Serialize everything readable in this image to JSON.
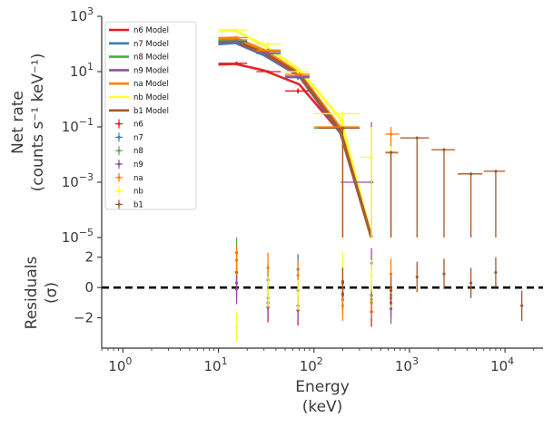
{
  "chart_data": [
    {
      "type": "line",
      "panel": "spectrum",
      "x_scale": "log",
      "y_scale": "log",
      "xlim": [
        0.6,
        25000
      ],
      "ylim": [
        1e-05,
        1000
      ],
      "ylabel": [
        "Net rate",
        "(counts s⁻¹ keV⁻¹)"
      ],
      "y_ticks": [
        {
          "value": 1e-05,
          "exp": "−5"
        },
        {
          "value": 0.001,
          "exp": "−3"
        },
        {
          "value": 0.1,
          "exp": "−1"
        },
        {
          "value": 10,
          "exp": "1"
        },
        {
          "value": 1000,
          "exp": "3"
        }
      ],
      "legend_position": "upper-left",
      "models": [
        {
          "name": "n6 Model",
          "color": "#e41a1c",
          "x": [
            10,
            15,
            30,
            70,
            190,
            400
          ],
          "y": [
            18,
            19,
            11,
            3.5,
            0.06,
            1e-05
          ]
        },
        {
          "name": "n7 Model",
          "color": "#377eb8",
          "x": [
            10,
            15,
            30,
            70,
            190,
            400
          ],
          "y": [
            100,
            110,
            40,
            7,
            0.06,
            1e-05
          ]
        },
        {
          "name": "n8 Model",
          "color": "#4daf4a",
          "x": [
            10,
            15,
            30,
            70,
            190,
            400
          ],
          "y": [
            130,
            140,
            50,
            8,
            0.07,
            1e-05
          ]
        },
        {
          "name": "n9 Model",
          "color": "#984ea3",
          "x": [
            10,
            15,
            30,
            70,
            190,
            400
          ],
          "y": [
            110,
            120,
            45,
            7.5,
            0.065,
            1e-05
          ]
        },
        {
          "name": "na Model",
          "color": "#ff7f00",
          "x": [
            10,
            15,
            30,
            70,
            190,
            400
          ],
          "y": [
            160,
            165,
            60,
            9,
            0.09,
            1e-05
          ]
        },
        {
          "name": "nb Model",
          "color": "#ffff33",
          "x": [
            10,
            15,
            30,
            70,
            190,
            400
          ],
          "y": [
            300,
            310,
            90,
            12,
            0.2,
            1e-05
          ]
        },
        {
          "name": "b1 Model",
          "color": "#a65628",
          "x": [
            10,
            15,
            30,
            70,
            190,
            400
          ],
          "y": [
            115,
            125,
            48,
            8,
            0.07,
            1e-05
          ]
        }
      ],
      "data_series": [
        {
          "name": "n6",
          "color": "#e41a1c",
          "points": [
            {
              "x": 15.5,
              "xlo": 10,
              "xhi": 20,
              "y": 20,
              "ylo": 17,
              "yhi": 23
            },
            {
              "x": 33,
              "xlo": 25,
              "xhi": 45,
              "y": 10,
              "ylo": 9,
              "yhi": 11
            },
            {
              "x": 68,
              "xlo": 50,
              "xhi": 90,
              "y": 2.0,
              "ylo": 1.6,
              "yhi": 2.5
            }
          ]
        },
        {
          "name": "n7",
          "color": "#377eb8",
          "points": [
            {
              "x": 15.5,
              "xlo": 10,
              "xhi": 20,
              "y": 120,
              "ylo": 100,
              "yhi": 140
            },
            {
              "x": 33,
              "xlo": 25,
              "xhi": 45,
              "y": 45,
              "ylo": 40,
              "yhi": 50
            },
            {
              "x": 68,
              "xlo": 50,
              "xhi": 90,
              "y": 6,
              "ylo": 5,
              "yhi": 7
            },
            {
              "x": 640,
              "xlo": 560,
              "xhi": 760,
              "y": 0.011,
              "ylo": 1e-05,
              "yhi": 0.012
            }
          ]
        },
        {
          "name": "n8",
          "color": "#4daf4a",
          "points": [
            {
              "x": 15.5,
              "xlo": 10,
              "xhi": 20,
              "y": 140,
              "ylo": 120,
              "yhi": 160
            },
            {
              "x": 33,
              "xlo": 25,
              "xhi": 45,
              "y": 55,
              "ylo": 48,
              "yhi": 62
            },
            {
              "x": 68,
              "xlo": 50,
              "xhi": 90,
              "y": 7,
              "ylo": 6,
              "yhi": 8
            },
            {
              "x": 200,
              "xlo": 100,
              "xhi": 300,
              "y": 0.09,
              "ylo": 1e-05,
              "yhi": 0.1
            }
          ]
        },
        {
          "name": "n9",
          "color": "#984ea3",
          "points": [
            {
              "x": 15.5,
              "xlo": 10,
              "xhi": 20,
              "y": 125,
              "ylo": 110,
              "yhi": 140
            },
            {
              "x": 33,
              "xlo": 25,
              "xhi": 45,
              "y": 48,
              "ylo": 42,
              "yhi": 54
            },
            {
              "x": 68,
              "xlo": 50,
              "xhi": 90,
              "y": 6.5,
              "ylo": 5.5,
              "yhi": 7.5
            },
            {
              "x": 400,
              "xlo": 190,
              "xhi": 420,
              "y": 0.001,
              "ylo": 1e-05,
              "yhi": 0.15
            }
          ]
        },
        {
          "name": "na",
          "color": "#ff7f00",
          "points": [
            {
              "x": 15.5,
              "xlo": 10,
              "xhi": 20,
              "y": 170,
              "ylo": 150,
              "yhi": 190
            },
            {
              "x": 33,
              "xlo": 25,
              "xhi": 45,
              "y": 60,
              "ylo": 52,
              "yhi": 68
            },
            {
              "x": 68,
              "xlo": 50,
              "xhi": 90,
              "y": 8,
              "ylo": 7,
              "yhi": 9
            },
            {
              "x": 200,
              "xlo": 100,
              "xhi": 300,
              "y": 0.1,
              "ylo": 1e-05,
              "yhi": 0.12
            },
            {
              "x": 640,
              "xlo": 560,
              "xhi": 780,
              "y": 0.055,
              "ylo": 1e-05,
              "yhi": 0.1
            }
          ]
        },
        {
          "name": "nb",
          "color": "#ffff33",
          "points": [
            {
              "x": 15.5,
              "xlo": 10,
              "xhi": 20,
              "y": 320,
              "ylo": 280,
              "yhi": 360
            },
            {
              "x": 33,
              "xlo": 25,
              "xhi": 45,
              "y": 100,
              "ylo": 85,
              "yhi": 115
            },
            {
              "x": 68,
              "xlo": 50,
              "xhi": 90,
              "y": 10,
              "ylo": 8.5,
              "yhi": 11.5
            },
            {
              "x": 200,
              "xlo": 100,
              "xhi": 300,
              "y": 0.3,
              "ylo": 1e-05,
              "yhi": 0.35
            },
            {
              "x": 400,
              "xlo": 300,
              "xhi": 420,
              "y": 0.008,
              "ylo": 1e-05,
              "yhi": 0.1
            },
            {
              "x": 640,
              "xlo": 560,
              "xhi": 760,
              "y": 0.011,
              "ylo": 1e-05,
              "yhi": 0.02
            }
          ]
        },
        {
          "name": "b1",
          "color": "#a65628",
          "points": [
            {
              "x": 200,
              "xlo": 110,
              "xhi": 300,
              "y": 0.09,
              "ylo": 1e-05,
              "yhi": 0.1
            },
            {
              "x": 640,
              "xlo": 560,
              "xhi": 760,
              "y": 0.012,
              "ylo": 1e-05,
              "yhi": 0.013
            },
            {
              "x": 1200,
              "xlo": 800,
              "xhi": 1600,
              "y": 0.04,
              "ylo": 1e-05,
              "yhi": 0.042
            },
            {
              "x": 2300,
              "xlo": 1700,
              "xhi": 3000,
              "y": 0.015,
              "ylo": 1e-05,
              "yhi": 0.016
            },
            {
              "x": 4400,
              "xlo": 3200,
              "xhi": 5800,
              "y": 0.002,
              "ylo": 1e-05,
              "yhi": 0.0022
            },
            {
              "x": 8000,
              "xlo": 6000,
              "xhi": 10000,
              "y": 0.0025,
              "ylo": 1e-05,
              "yhi": 0.0027
            }
          ]
        }
      ]
    },
    {
      "type": "scatter",
      "panel": "residuals",
      "x_scale": "log",
      "xlim": [
        0.6,
        25000
      ],
      "ylim": [
        -4,
        3.3
      ],
      "xlabel": [
        "Energy",
        "(keV)"
      ],
      "ylabel": [
        "Residuals",
        "(σ)"
      ],
      "x_ticks": [
        {
          "value": 1,
          "exp": "0"
        },
        {
          "value": 10,
          "exp": "1"
        },
        {
          "value": 100,
          "exp": "2"
        },
        {
          "value": 1000,
          "exp": "3"
        },
        {
          "value": 10000,
          "exp": "4"
        }
      ],
      "y_ticks": [
        {
          "value": -2,
          "label": "−2"
        },
        {
          "value": 0,
          "label": "0"
        },
        {
          "value": 2,
          "label": "2"
        }
      ],
      "reference_line": 0,
      "series": [
        {
          "name": "n6",
          "color": "#e41a1c",
          "points": [
            {
              "x": 15.5,
              "y": 1.0,
              "err": 1.0
            },
            {
              "x": 33,
              "y": -1.3,
              "err": 1.0
            },
            {
              "x": 68,
              "y": -1.5,
              "err": 1.0
            },
            {
              "x": 200,
              "y": 0.4,
              "err": 1.0
            },
            {
              "x": 400,
              "y": -1.6,
              "err": 1.0
            },
            {
              "x": 640,
              "y": -1.0,
              "err": 1.0
            }
          ]
        },
        {
          "name": "n7",
          "color": "#377eb8",
          "points": [
            {
              "x": 15.5,
              "y": 0.3,
              "err": 1.0
            },
            {
              "x": 33,
              "y": 0.5,
              "err": 1.0
            },
            {
              "x": 68,
              "y": 1.2,
              "err": 1.0
            },
            {
              "x": 200,
              "y": -0.4,
              "err": 1.0
            },
            {
              "x": 400,
              "y": -0.5,
              "err": 1.0
            },
            {
              "x": 640,
              "y": -0.7,
              "err": 1.0
            }
          ]
        },
        {
          "name": "n8",
          "color": "#4daf4a",
          "points": [
            {
              "x": 15.5,
              "y": 2.3,
              "err": 1.0
            },
            {
              "x": 33,
              "y": -0.7,
              "err": 1.0
            },
            {
              "x": 68,
              "y": -0.2,
              "err": 1.0
            },
            {
              "x": 200,
              "y": -0.8,
              "err": 1.0
            },
            {
              "x": 400,
              "y": -1.0,
              "err": 1.0
            },
            {
              "x": 640,
              "y": -0.5,
              "err": 1.0
            }
          ]
        },
        {
          "name": "n9",
          "color": "#984ea3",
          "points": [
            {
              "x": 15.5,
              "y": -0.1,
              "err": 1.0
            },
            {
              "x": 33,
              "y": -1.0,
              "err": 1.0
            },
            {
              "x": 68,
              "y": -1.2,
              "err": 1.0
            },
            {
              "x": 200,
              "y": -0.5,
              "err": 1.0
            },
            {
              "x": 400,
              "y": 1.6,
              "err": 1.0
            },
            {
              "x": 640,
              "y": -1.4,
              "err": 1.0
            }
          ]
        },
        {
          "name": "na",
          "color": "#ff7f00",
          "points": [
            {
              "x": 15.5,
              "y": 1.8,
              "err": 1.0
            },
            {
              "x": 33,
              "y": 1.3,
              "err": 1.0
            },
            {
              "x": 68,
              "y": 0.8,
              "err": 1.0
            },
            {
              "x": 200,
              "y": -1.2,
              "err": 1.0
            },
            {
              "x": 400,
              "y": -0.8,
              "err": 1.0
            },
            {
              "x": 640,
              "y": 0.9,
              "err": 1.0
            }
          ]
        },
        {
          "name": "nb",
          "color": "#ffff33",
          "points": [
            {
              "x": 15.5,
              "y": -2.6,
              "err": 1.0
            },
            {
              "x": 33,
              "y": -0.3,
              "err": 1.0
            },
            {
              "x": 68,
              "y": -0.5,
              "err": 1.0
            },
            {
              "x": 200,
              "y": 1.3,
              "err": 1.0
            },
            {
              "x": 400,
              "y": 0.8,
              "err": 1.0
            },
            {
              "x": 640,
              "y": -0.3,
              "err": 1.0
            }
          ]
        },
        {
          "name": "b1",
          "color": "#a65628",
          "points": [
            {
              "x": 200,
              "y": 0.3,
              "err": 1.0
            },
            {
              "x": 640,
              "y": -0.2,
              "err": 1.0
            },
            {
              "x": 1200,
              "y": 0.7,
              "err": 1.0
            },
            {
              "x": 2300,
              "y": 0.9,
              "err": 1.0
            },
            {
              "x": 4400,
              "y": 0.3,
              "err": 1.0
            },
            {
              "x": 8000,
              "y": 1.0,
              "err": 1.0
            },
            {
              "x": 15000,
              "y": -1.2,
              "err": 1.0
            }
          ]
        }
      ]
    }
  ]
}
